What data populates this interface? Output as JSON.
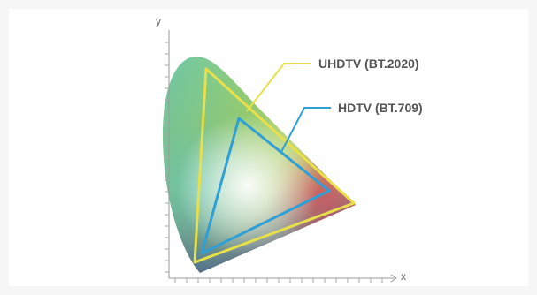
{
  "axes": {
    "x_label": "x",
    "y_label": "y"
  },
  "gamuts": [
    {
      "key": "uhdtv",
      "label": "UHDTV (BT.2020)",
      "color": "#e8e04a"
    },
    {
      "key": "hdtv",
      "label": "HDTV (BT.709)",
      "color": "#2f9fd6"
    }
  ],
  "colors": {
    "axis": "#9a9a9a",
    "locus_green": "#68c9a5",
    "locus_yellow": "#d8df2a",
    "locus_red": "#e6315d",
    "locus_blue": "#1f3f9a",
    "center_white": "#ffffff"
  }
}
